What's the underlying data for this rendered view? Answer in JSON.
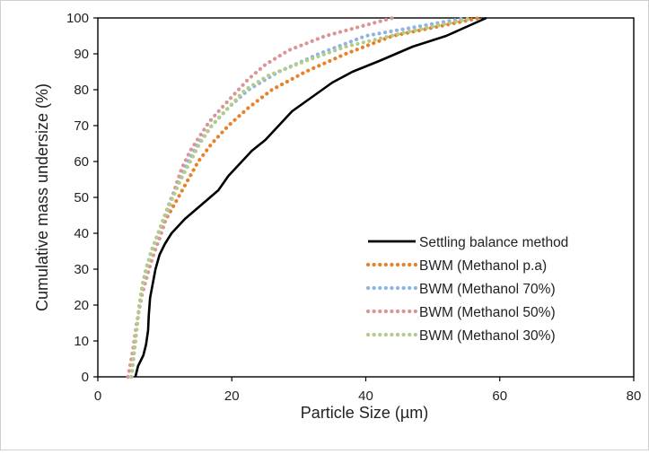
{
  "chart_data": {
    "type": "line",
    "title": "",
    "xlabel": "Particle Size (µm)",
    "ylabel": "Cumulative mass undersize (%)",
    "xlim": [
      0,
      80
    ],
    "ylim": [
      0,
      100
    ],
    "x_ticks": [
      "0",
      "20",
      "40",
      "60",
      "80"
    ],
    "y_ticks": [
      "0",
      "10",
      "20",
      "30",
      "40",
      "50",
      "60",
      "70",
      "80",
      "90",
      "100"
    ],
    "grid": false,
    "legend_position": "bottom-right",
    "series": [
      {
        "name": "Settling balance method",
        "color": "#000000",
        "style": "solid",
        "points": [
          [
            5.6,
            0
          ],
          [
            6.0,
            3
          ],
          [
            6.8,
            6
          ],
          [
            7.2,
            9
          ],
          [
            7.5,
            13
          ],
          [
            7.6,
            17
          ],
          [
            7.8,
            22
          ],
          [
            8.2,
            26
          ],
          [
            8.6,
            30
          ],
          [
            9.2,
            34
          ],
          [
            10.0,
            37
          ],
          [
            11.0,
            40
          ],
          [
            13.0,
            44
          ],
          [
            15.5,
            48
          ],
          [
            18.0,
            52
          ],
          [
            19.5,
            56
          ],
          [
            21.0,
            59
          ],
          [
            23.0,
            63
          ],
          [
            25.0,
            66
          ],
          [
            27.0,
            70
          ],
          [
            29.0,
            74
          ],
          [
            32.0,
            78
          ],
          [
            35.0,
            82
          ],
          [
            38.0,
            85
          ],
          [
            42.0,
            88
          ],
          [
            47.0,
            92
          ],
          [
            52.0,
            95
          ],
          [
            58.0,
            100
          ]
        ]
      },
      {
        "name": "BWM (Methanol p.a)",
        "color": "#e8822a",
        "style": "dotted",
        "points": [
          [
            5.0,
            0
          ],
          [
            5.3,
            5
          ],
          [
            5.6,
            10
          ],
          [
            5.9,
            15
          ],
          [
            6.2,
            20
          ],
          [
            6.6,
            25
          ],
          [
            7.2,
            30
          ],
          [
            8.0,
            35
          ],
          [
            9.0,
            40
          ],
          [
            10.5,
            45
          ],
          [
            12.0,
            50
          ],
          [
            13.5,
            55
          ],
          [
            15.0,
            60
          ],
          [
            17.0,
            65
          ],
          [
            19.5,
            70
          ],
          [
            22.5,
            75
          ],
          [
            26.0,
            80
          ],
          [
            31.0,
            85
          ],
          [
            37.0,
            90
          ],
          [
            44.0,
            95
          ],
          [
            57.0,
            100
          ]
        ]
      },
      {
        "name": "BWM (Methanol 70%)",
        "color": "#8eb4e3",
        "style": "dotted",
        "points": [
          [
            5.0,
            0
          ],
          [
            5.3,
            5
          ],
          [
            5.6,
            10
          ],
          [
            5.9,
            15
          ],
          [
            6.2,
            20
          ],
          [
            6.6,
            25
          ],
          [
            7.2,
            30
          ],
          [
            8.0,
            35
          ],
          [
            9.0,
            40
          ],
          [
            10.0,
            45
          ],
          [
            11.0,
            50
          ],
          [
            12.2,
            55
          ],
          [
            13.5,
            60
          ],
          [
            15.0,
            65
          ],
          [
            17.0,
            70
          ],
          [
            19.5,
            75
          ],
          [
            22.5,
            80
          ],
          [
            27.0,
            85
          ],
          [
            33.0,
            90
          ],
          [
            40.0,
            95
          ],
          [
            55.0,
            100
          ]
        ]
      },
      {
        "name": "BWM (Methanol 50%)",
        "color": "#da9694",
        "style": "dotted",
        "points": [
          [
            4.5,
            0
          ],
          [
            4.8,
            3
          ],
          [
            5.2,
            7
          ],
          [
            5.5,
            11
          ],
          [
            5.8,
            15
          ],
          [
            6.2,
            19
          ],
          [
            6.6,
            23
          ],
          [
            7.2,
            27
          ],
          [
            7.8,
            31
          ],
          [
            8.5,
            35
          ],
          [
            9.3,
            39
          ],
          [
            10.0,
            43
          ],
          [
            10.8,
            48
          ],
          [
            11.6,
            53
          ],
          [
            12.5,
            58
          ],
          [
            13.8,
            63
          ],
          [
            15.2,
            67
          ],
          [
            16.6,
            71
          ],
          [
            18.5,
            75
          ],
          [
            20.5,
            79
          ],
          [
            22.5,
            83
          ],
          [
            25.0,
            87
          ],
          [
            28.5,
            91
          ],
          [
            34.0,
            95
          ],
          [
            40.0,
            98
          ],
          [
            44.0,
            100
          ]
        ]
      },
      {
        "name": "BWM (Methanol 30%)",
        "color": "#b3cc8a",
        "style": "dotted",
        "points": [
          [
            5.0,
            0
          ],
          [
            5.3,
            5
          ],
          [
            5.6,
            10
          ],
          [
            5.9,
            15
          ],
          [
            6.2,
            20
          ],
          [
            6.6,
            25
          ],
          [
            7.2,
            30
          ],
          [
            8.0,
            35
          ],
          [
            9.0,
            40
          ],
          [
            10.0,
            45
          ],
          [
            11.2,
            50
          ],
          [
            12.4,
            55
          ],
          [
            13.8,
            60
          ],
          [
            15.2,
            65
          ],
          [
            17.0,
            70
          ],
          [
            19.5,
            75
          ],
          [
            22.0,
            80
          ],
          [
            25.5,
            84
          ],
          [
            31.0,
            88
          ],
          [
            37.0,
            92
          ],
          [
            46.0,
            96
          ],
          [
            56.0,
            100
          ]
        ]
      }
    ]
  }
}
